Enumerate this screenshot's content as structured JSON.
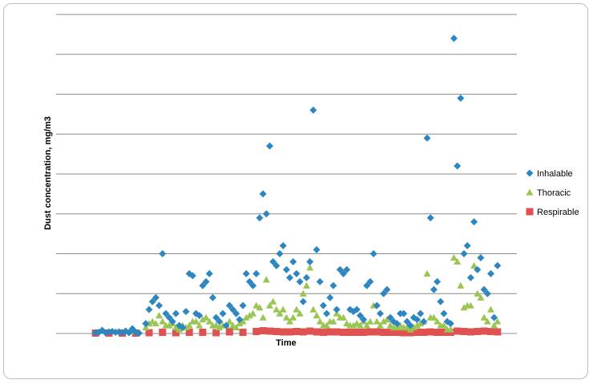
{
  "chart_data": {
    "type": "scatter",
    "title": "",
    "xlabel": "Time",
    "ylabel": "Dust concentration, mg/m3",
    "grid": true,
    "legend_position": "right",
    "y_gridlines": 8,
    "series": [
      {
        "name": "Inhalable",
        "color": "#2e86c1",
        "marker": "diamond",
        "values": [
          [
            1,
            0.02
          ],
          [
            2,
            0.03
          ],
          [
            3,
            0.08
          ],
          [
            4,
            0.02
          ],
          [
            5,
            0.04
          ],
          [
            6,
            0.05
          ],
          [
            7,
            0.03
          ],
          [
            8,
            0.04
          ],
          [
            9,
            0.02
          ],
          [
            10,
            0.06
          ],
          [
            11,
            0.02
          ],
          [
            12,
            0.12
          ],
          [
            13,
            0.03
          ],
          [
            14,
            0.01
          ],
          [
            16,
            0.25
          ],
          [
            17,
            0.6
          ],
          [
            18,
            0.8
          ],
          [
            19,
            0.9
          ],
          [
            20,
            0.7
          ],
          [
            21,
            2.0
          ],
          [
            22,
            0.5
          ],
          [
            23,
            0.4
          ],
          [
            24,
            0.3
          ],
          [
            25,
            0.5
          ],
          [
            26,
            0.2
          ],
          [
            27,
            0.15
          ],
          [
            28,
            0.55
          ],
          [
            29,
            1.5
          ],
          [
            30,
            1.45
          ],
          [
            31,
            0.5
          ],
          [
            32,
            0.45
          ],
          [
            33,
            1.2
          ],
          [
            34,
            1.3
          ],
          [
            35,
            1.5
          ],
          [
            36,
            0.9
          ],
          [
            37,
            0.4
          ],
          [
            38,
            0.3
          ],
          [
            39,
            0.5
          ],
          [
            40,
            0.2
          ],
          [
            41,
            0.7
          ],
          [
            42,
            0.6
          ],
          [
            43,
            0.5
          ],
          [
            44,
            0.35
          ],
          [
            45,
            0.7
          ],
          [
            46,
            1.5
          ],
          [
            47,
            1.3
          ],
          [
            48,
            1.2
          ],
          [
            49,
            1.5
          ],
          [
            50,
            2.9
          ],
          [
            51,
            3.5
          ],
          [
            52,
            3.0
          ],
          [
            53,
            4.7
          ],
          [
            54,
            1.8
          ],
          [
            55,
            1.7
          ],
          [
            56,
            2.0
          ],
          [
            57,
            2.2
          ],
          [
            58,
            1.6
          ],
          [
            59,
            1.4
          ],
          [
            60,
            1.8
          ],
          [
            61,
            1.5
          ],
          [
            62,
            1.3
          ],
          [
            63,
            0.8
          ],
          [
            64,
            1.4
          ],
          [
            65,
            1.8
          ],
          [
            66,
            5.6
          ],
          [
            67,
            2.1
          ],
          [
            68,
            1.3
          ],
          [
            69,
            0.7
          ],
          [
            70,
            0.5
          ],
          [
            71,
            0.9
          ],
          [
            72,
            1.2
          ],
          [
            73,
            0.6
          ],
          [
            74,
            1.6
          ],
          [
            75,
            1.5
          ],
          [
            76,
            1.6
          ],
          [
            77,
            0.6
          ],
          [
            78,
            0.55
          ],
          [
            79,
            0.6
          ],
          [
            80,
            0.45
          ],
          [
            81,
            0.35
          ],
          [
            82,
            1.2
          ],
          [
            83,
            1.3
          ],
          [
            84,
            2.0
          ],
          [
            85,
            0.7
          ],
          [
            86,
            0.5
          ],
          [
            87,
            1.0
          ],
          [
            88,
            1.1
          ],
          [
            89,
            0.4
          ],
          [
            90,
            0.3
          ],
          [
            91,
            0.25
          ],
          [
            92,
            0.5
          ],
          [
            93,
            0.5
          ],
          [
            94,
            0.3
          ],
          [
            95,
            0.2
          ],
          [
            96,
            0.4
          ],
          [
            97,
            0.35
          ],
          [
            98,
            0.5
          ],
          [
            99,
            0.3
          ],
          [
            100,
            4.9
          ],
          [
            101,
            2.9
          ],
          [
            102,
            1.1
          ],
          [
            103,
            1.3
          ],
          [
            104,
            0.8
          ],
          [
            105,
            0.5
          ],
          [
            106,
            0.3
          ],
          [
            107,
            0.25
          ],
          [
            108,
            7.4
          ],
          [
            109,
            4.2
          ],
          [
            110,
            5.9
          ],
          [
            111,
            2.0
          ],
          [
            112,
            2.2
          ],
          [
            113,
            1.4
          ],
          [
            114,
            2.8
          ],
          [
            115,
            1.6
          ],
          [
            116,
            1.9
          ],
          [
            117,
            1.1
          ],
          [
            118,
            1.0
          ],
          [
            119,
            1.5
          ],
          [
            120,
            0.4
          ],
          [
            121,
            1.7
          ]
        ]
      },
      {
        "name": "Thoracic",
        "color": "#9bc553",
        "marker": "triangle",
        "values": [
          [
            12,
            0.05
          ],
          [
            16,
            0.15
          ],
          [
            17,
            0.25
          ],
          [
            18,
            0.3
          ],
          [
            19,
            0.25
          ],
          [
            20,
            0.45
          ],
          [
            21,
            0.3
          ],
          [
            22,
            0.2
          ],
          [
            23,
            0.2
          ],
          [
            24,
            0.25
          ],
          [
            25,
            0.15
          ],
          [
            26,
            0.1
          ],
          [
            27,
            0.2
          ],
          [
            28,
            0.15
          ],
          [
            29,
            0.2
          ],
          [
            30,
            0.3
          ],
          [
            31,
            0.3
          ],
          [
            32,
            0.2
          ],
          [
            33,
            0.35
          ],
          [
            34,
            0.4
          ],
          [
            35,
            0.3
          ],
          [
            36,
            0.2
          ],
          [
            37,
            0.2
          ],
          [
            38,
            0.15
          ],
          [
            39,
            0.2
          ],
          [
            40,
            0.2
          ],
          [
            41,
            0.3
          ],
          [
            42,
            0.2
          ],
          [
            43,
            0.15
          ],
          [
            44,
            0.25
          ],
          [
            45,
            0.3
          ],
          [
            46,
            0.4
          ],
          [
            47,
            0.45
          ],
          [
            48,
            0.5
          ],
          [
            49,
            0.7
          ],
          [
            50,
            0.65
          ],
          [
            51,
            0.4
          ],
          [
            52,
            1.35
          ],
          [
            53,
            0.7
          ],
          [
            54,
            0.8
          ],
          [
            55,
            0.6
          ],
          [
            56,
            0.5
          ],
          [
            57,
            0.6
          ],
          [
            58,
            0.4
          ],
          [
            59,
            0.3
          ],
          [
            60,
            0.4
          ],
          [
            61,
            0.6
          ],
          [
            62,
            0.5
          ],
          [
            63,
            1.0
          ],
          [
            64,
            1.2
          ],
          [
            65,
            1.65
          ],
          [
            66,
            0.6
          ],
          [
            67,
            0.45
          ],
          [
            68,
            0.3
          ],
          [
            69,
            0.2
          ],
          [
            70,
            0.2
          ],
          [
            71,
            0.3
          ],
          [
            72,
            0.3
          ],
          [
            73,
            0.5
          ],
          [
            74,
            0.4
          ],
          [
            75,
            0.4
          ],
          [
            76,
            0.25
          ],
          [
            77,
            0.2
          ],
          [
            78,
            0.2
          ],
          [
            79,
            0.25
          ],
          [
            80,
            0.2
          ],
          [
            81,
            0.3
          ],
          [
            82,
            0.2
          ],
          [
            83,
            0.3
          ],
          [
            84,
            0.7
          ],
          [
            85,
            0.3
          ],
          [
            86,
            0.2
          ],
          [
            87,
            0.3
          ],
          [
            88,
            0.35
          ],
          [
            89,
            0.2
          ],
          [
            90,
            0.15
          ],
          [
            91,
            0.15
          ],
          [
            92,
            0.2
          ],
          [
            93,
            0.15
          ],
          [
            94,
            0.15
          ],
          [
            95,
            0.1
          ],
          [
            96,
            0.15
          ],
          [
            97,
            0.2
          ],
          [
            98,
            0.25
          ],
          [
            99,
            0.3
          ],
          [
            100,
            1.5
          ],
          [
            101,
            0.4
          ],
          [
            102,
            0.4
          ],
          [
            103,
            0.3
          ],
          [
            104,
            0.2
          ],
          [
            105,
            0.2
          ],
          [
            106,
            0.1
          ],
          [
            107,
            0.1
          ],
          [
            108,
            1.9
          ],
          [
            109,
            1.8
          ],
          [
            110,
            1.2
          ],
          [
            111,
            0.65
          ],
          [
            112,
            0.7
          ],
          [
            113,
            0.7
          ],
          [
            114,
            1.7
          ],
          [
            115,
            1.0
          ],
          [
            116,
            0.9
          ],
          [
            117,
            0.4
          ],
          [
            118,
            0.3
          ],
          [
            119,
            0.6
          ],
          [
            120,
            0.2
          ],
          [
            121,
            0.3
          ]
        ]
      },
      {
        "name": "Respirable",
        "color": "#e05252",
        "marker": "square",
        "values": [
          [
            1,
            0.01
          ],
          [
            5,
            0.01
          ],
          [
            9,
            0.01
          ],
          [
            13,
            0.01
          ],
          [
            17,
            0.02
          ],
          [
            21,
            0.03
          ],
          [
            25,
            0.02
          ],
          [
            29,
            0.03
          ],
          [
            33,
            0.03
          ],
          [
            37,
            0.02
          ],
          [
            41,
            0.04
          ],
          [
            45,
            0.03
          ],
          [
            49,
            0.05
          ],
          [
            51,
            0.07
          ],
          [
            53,
            0.06
          ],
          [
            55,
            0.05
          ],
          [
            57,
            0.04
          ],
          [
            59,
            0.04
          ],
          [
            61,
            0.05
          ],
          [
            63,
            0.04
          ],
          [
            65,
            0.06
          ],
          [
            67,
            0.04
          ],
          [
            69,
            0.03
          ],
          [
            71,
            0.04
          ],
          [
            73,
            0.04
          ],
          [
            75,
            0.03
          ],
          [
            77,
            0.03
          ],
          [
            79,
            0.03
          ],
          [
            81,
            0.03
          ],
          [
            83,
            0.04
          ],
          [
            85,
            0.04
          ],
          [
            87,
            0.03
          ],
          [
            89,
            0.03
          ],
          [
            91,
            0.03
          ],
          [
            93,
            0.02
          ],
          [
            95,
            0.02
          ],
          [
            97,
            0.03
          ],
          [
            99,
            0.03
          ],
          [
            101,
            0.04
          ],
          [
            103,
            0.03
          ],
          [
            105,
            0.03
          ],
          [
            107,
            0.03
          ],
          [
            109,
            0.06
          ],
          [
            111,
            0.05
          ],
          [
            113,
            0.04
          ],
          [
            115,
            0.05
          ],
          [
            117,
            0.06
          ],
          [
            119,
            0.05
          ],
          [
            121,
            0.04
          ]
        ]
      }
    ]
  }
}
